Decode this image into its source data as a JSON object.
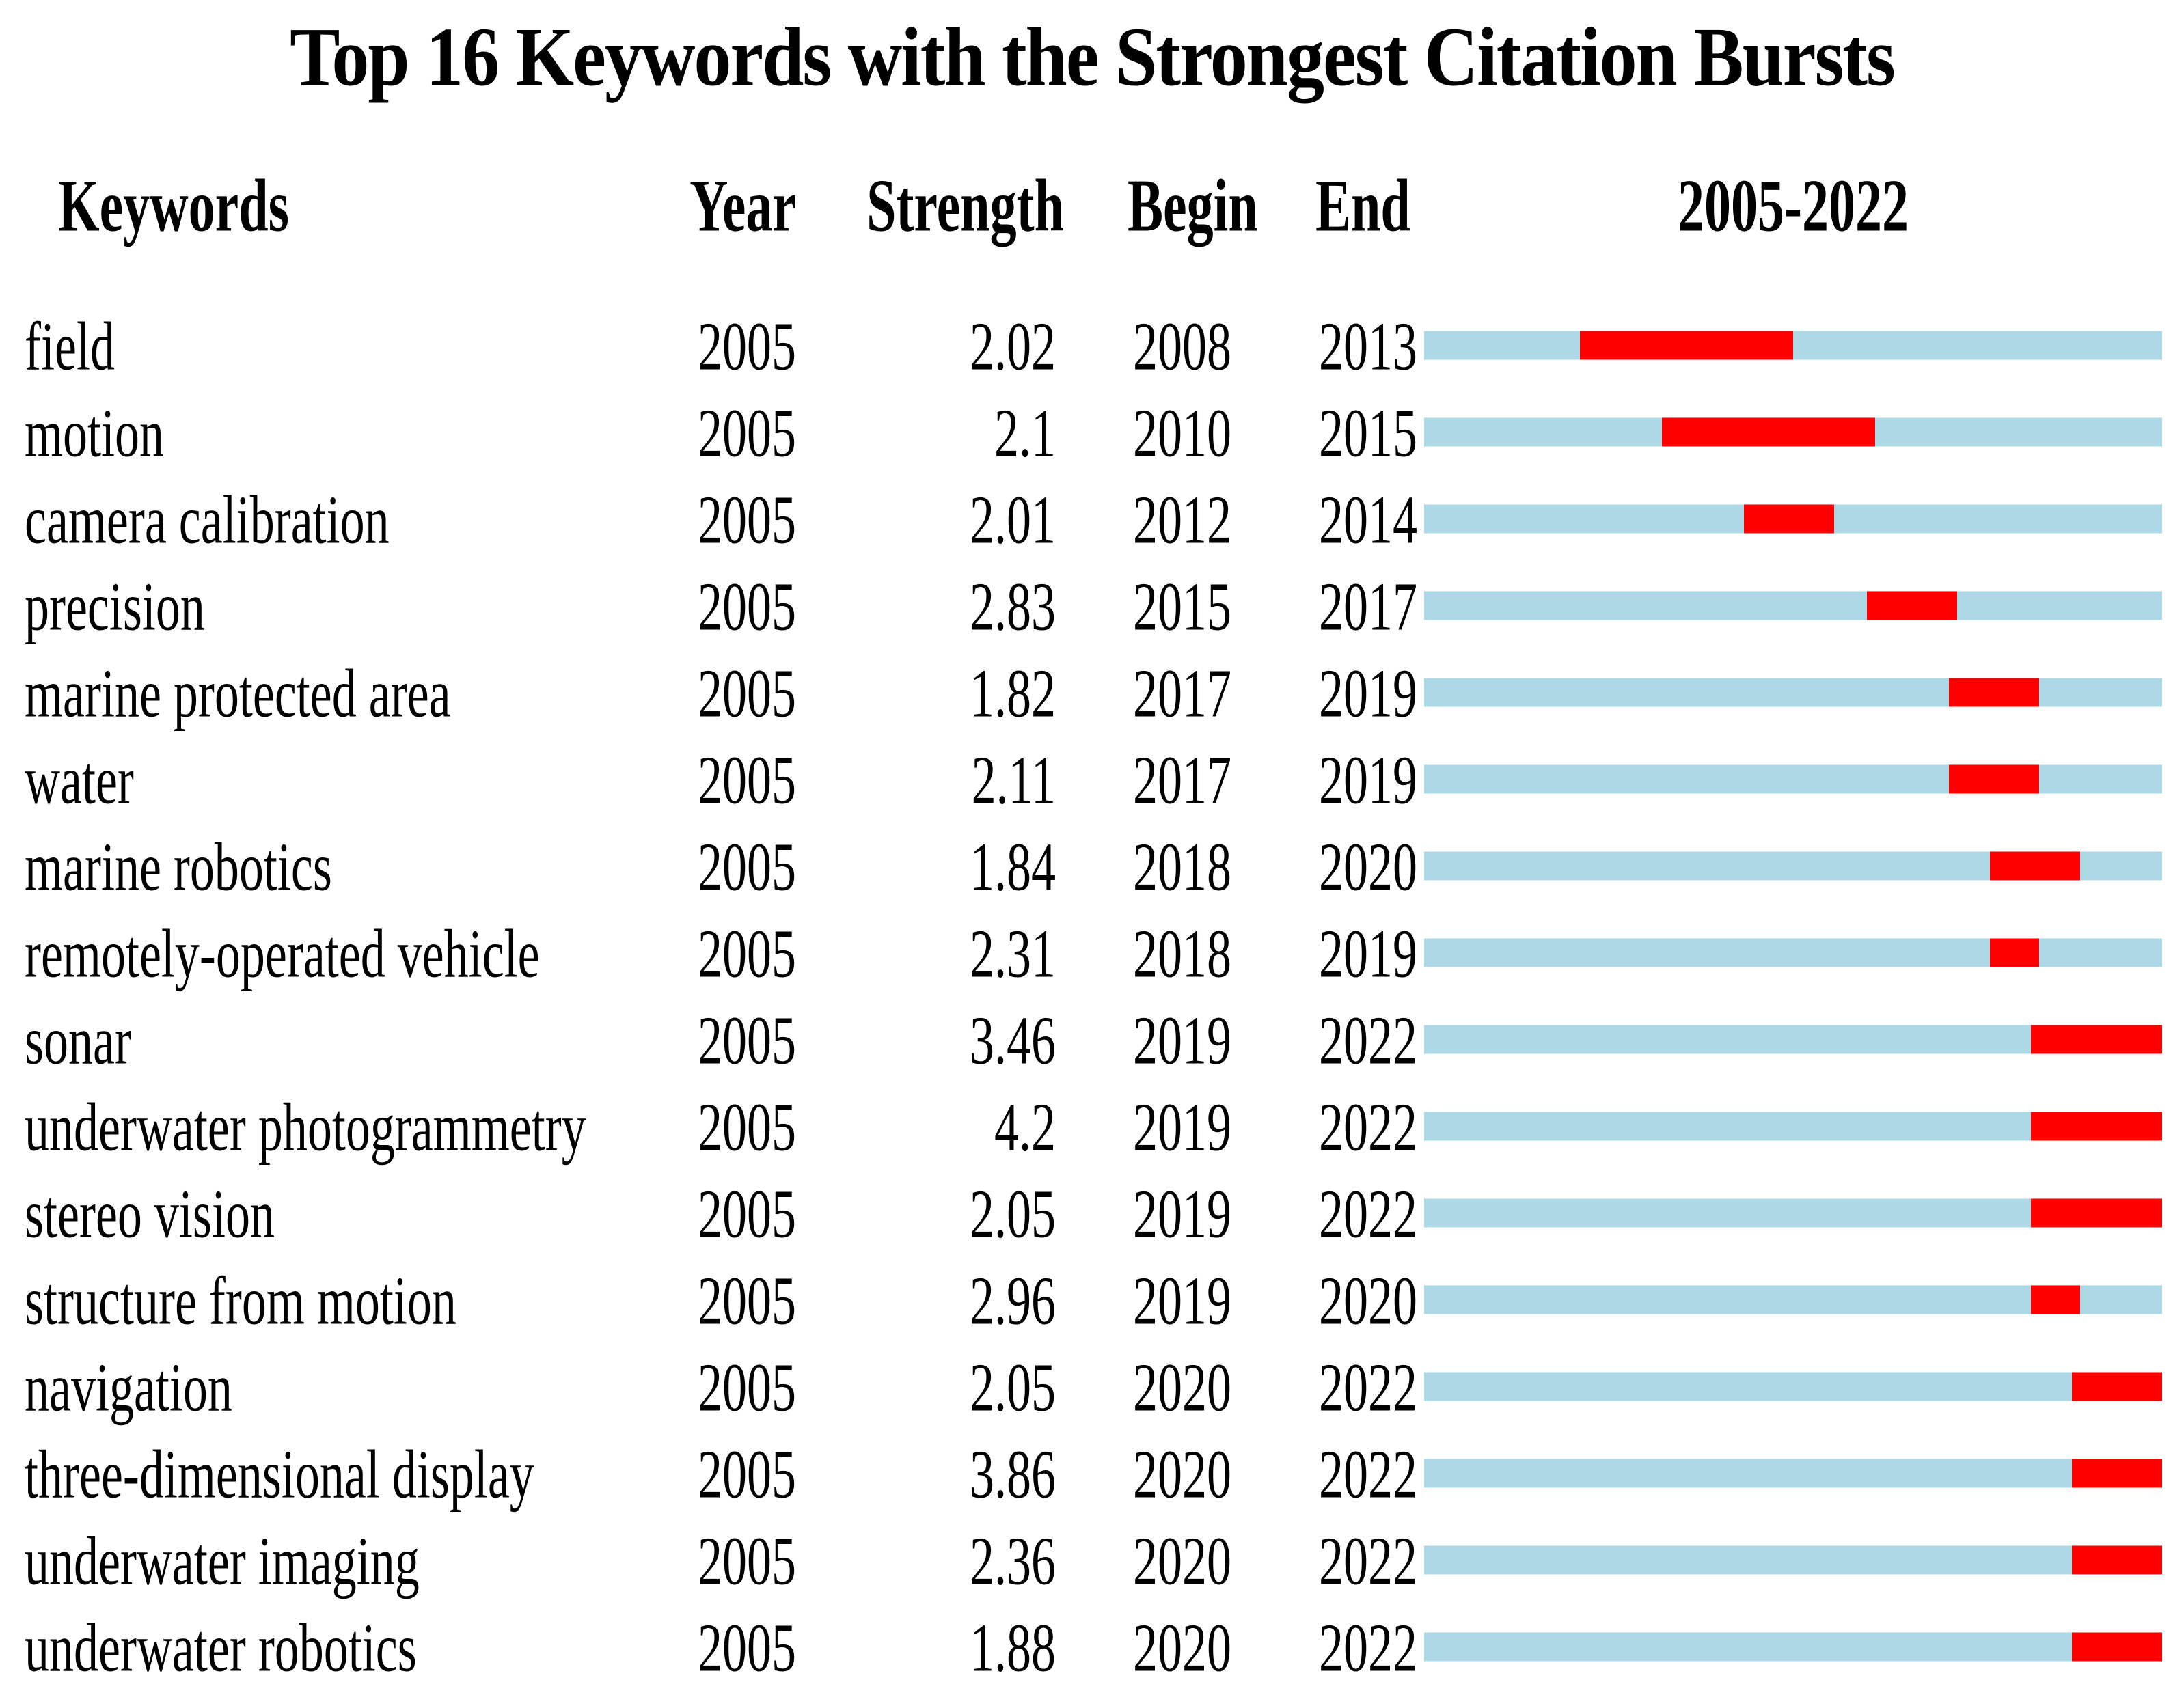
{
  "chart_data": {
    "type": "table",
    "title": "Top 16 Keywords with the Strongest Citation Bursts",
    "columns": {
      "keywords": "Keywords",
      "year": "Year",
      "strength": "Strength",
      "begin": "Begin",
      "end": "End",
      "timeline": "2005-2022"
    },
    "timeline": {
      "start": 2005,
      "end": 2022,
      "track_color": "#ADD8E6",
      "burst_color": "#FF0000"
    },
    "rows": [
      {
        "keyword": "field",
        "year": "2005",
        "strength": "2.02",
        "begin": 2008,
        "end": 2013
      },
      {
        "keyword": "motion",
        "year": "2005",
        "strength": "2.1",
        "begin": 2010,
        "end": 2015
      },
      {
        "keyword": "camera calibration",
        "year": "2005",
        "strength": "2.01",
        "begin": 2012,
        "end": 2014
      },
      {
        "keyword": "precision",
        "year": "2005",
        "strength": "2.83",
        "begin": 2015,
        "end": 2017
      },
      {
        "keyword": "marine protected area",
        "year": "2005",
        "strength": "1.82",
        "begin": 2017,
        "end": 2019
      },
      {
        "keyword": "water",
        "year": "2005",
        "strength": "2.11",
        "begin": 2017,
        "end": 2019
      },
      {
        "keyword": "marine robotics",
        "year": "2005",
        "strength": "1.84",
        "begin": 2018,
        "end": 2020
      },
      {
        "keyword": "remotely-operated vehicle",
        "year": "2005",
        "strength": "2.31",
        "begin": 2018,
        "end": 2019
      },
      {
        "keyword": "sonar",
        "year": "2005",
        "strength": "3.46",
        "begin": 2019,
        "end": 2022
      },
      {
        "keyword": "underwater photogrammetry",
        "year": "2005",
        "strength": "4.2",
        "begin": 2019,
        "end": 2022
      },
      {
        "keyword": "stereo vision",
        "year": "2005",
        "strength": "2.05",
        "begin": 2019,
        "end": 2022
      },
      {
        "keyword": "structure from motion",
        "year": "2005",
        "strength": "2.96",
        "begin": 2019,
        "end": 2020
      },
      {
        "keyword": "navigation",
        "year": "2005",
        "strength": "2.05",
        "begin": 2020,
        "end": 2022
      },
      {
        "keyword": "three-dimensional display",
        "year": "2005",
        "strength": "3.86",
        "begin": 2020,
        "end": 2022
      },
      {
        "keyword": "underwater imaging",
        "year": "2005",
        "strength": "2.36",
        "begin": 2020,
        "end": 2022
      },
      {
        "keyword": "underwater robotics",
        "year": "2005",
        "strength": "1.88",
        "begin": 2020,
        "end": 2022
      }
    ]
  }
}
